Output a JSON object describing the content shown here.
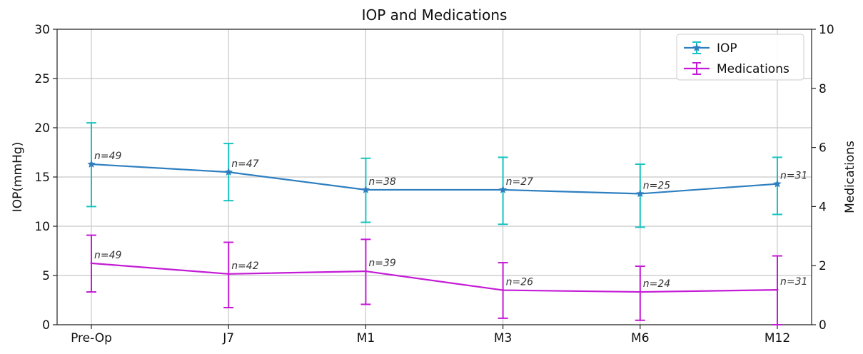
{
  "chart_data": {
    "type": "line",
    "title": "IOP and Medications",
    "categories": [
      "Pre-Op",
      "J7",
      "M1",
      "M3",
      "M6",
      "M12"
    ],
    "ylabel": "IOP(mmHg)",
    "y2label": "Medications",
    "ylim": [
      0,
      30
    ],
    "y2lim": [
      0,
      10
    ],
    "yticks": [
      0,
      5,
      10,
      15,
      20,
      25,
      30
    ],
    "y2ticks": [
      0,
      2,
      4,
      6,
      8,
      10
    ],
    "grid": true,
    "legend_position": "top-right",
    "series": [
      {
        "name": "IOP",
        "axis": "left",
        "values": [
          16.3,
          15.5,
          13.7,
          13.7,
          13.3,
          14.3
        ],
        "err_low": [
          12.0,
          12.6,
          10.4,
          10.2,
          9.9,
          11.2
        ],
        "err_high": [
          20.5,
          18.4,
          16.9,
          17.0,
          16.3,
          17.0
        ],
        "labels": [
          "n=49",
          "n=47",
          "n=38",
          "n=27",
          "n=25",
          "n=31"
        ],
        "line_color": "#2e7fc0",
        "errorbar_color": "#18c4c0"
      },
      {
        "name": "Medications",
        "axis": "right",
        "values": [
          2.08,
          1.72,
          1.81,
          1.17,
          1.11,
          1.18
        ],
        "err_low": [
          1.11,
          0.58,
          0.69,
          0.22,
          0.15,
          0.0
        ],
        "err_high": [
          3.03,
          2.79,
          2.89,
          2.1,
          1.98,
          2.33
        ],
        "labels": [
          "n=49",
          "n=42",
          "n=39",
          "n=26",
          "n=24",
          "n=31"
        ],
        "line_color": "#c41bd6",
        "errorbar_color": "#c41bd6"
      }
    ]
  }
}
